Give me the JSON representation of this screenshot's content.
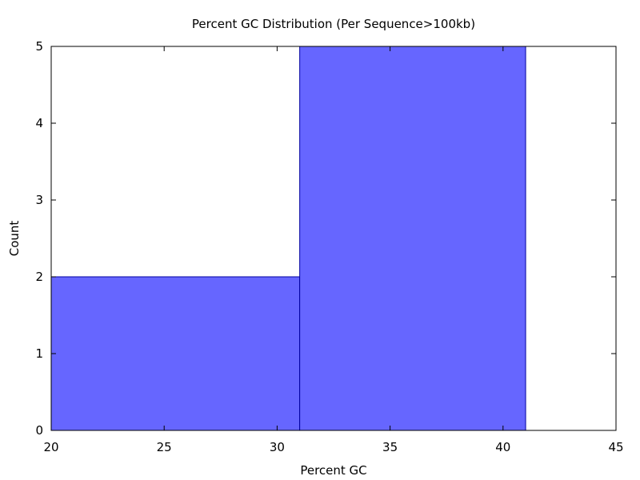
{
  "chart_data": {
    "type": "bar",
    "title": "Percent GC Distribution (Per Sequence>100kb)",
    "xlabel": "Percent GC",
    "ylabel": "Count",
    "xlim": [
      20,
      45
    ],
    "ylim": [
      0,
      5
    ],
    "xticks": [
      "20",
      "25",
      "30",
      "35",
      "40",
      "45"
    ],
    "yticks": [
      "0",
      "1",
      "2",
      "3",
      "4",
      "5"
    ],
    "bins": [
      {
        "x0": 20,
        "x1": 31,
        "count": 2
      },
      {
        "x0": 31,
        "x1": 41,
        "count": 5
      }
    ],
    "bar_color": "#6666ff",
    "bar_edge_color": "#0000a0",
    "grid": false
  }
}
